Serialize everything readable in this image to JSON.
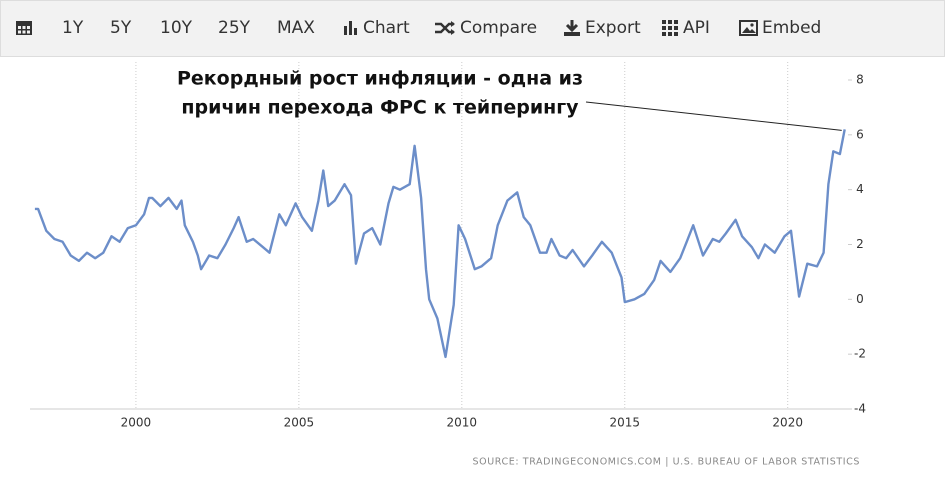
{
  "toolbar": [
    "1Y",
    "5Y",
    "10Y",
    "25Y",
    "MAX",
    "Chart",
    "Compare",
    "Export",
    "API",
    "Embed"
  ],
  "chart_data": {
    "type": "line",
    "annotation": [
      "Рекордный рост инфляции - одна из",
      "причин перехода ФРС к тейперингу"
    ],
    "source": "SOURCE: TRADINGECONOMICS.COM | U.S. BUREAU OF LABOR STATISTICS",
    "xlim": [
      1996.75,
      2021.85
    ],
    "xticks": [
      2000,
      2005,
      2010,
      2015,
      2020
    ],
    "ylim": [
      -4,
      8
    ],
    "yticks": [
      -4,
      -2,
      0,
      2,
      4,
      6,
      8
    ],
    "grid": true,
    "series": [
      {
        "color": "#6c8ec9",
        "x": [
          1996.9,
          1997.0,
          1997.25,
          1997.5,
          1997.75,
          1998.0,
          1998.25,
          1998.5,
          1998.75,
          1999.0,
          1999.25,
          1999.5,
          1999.75,
          2000.0,
          2000.25,
          2000.4,
          2000.5,
          2000.75,
          2001.0,
          2001.25,
          2001.4,
          2001.5,
          2001.75,
          2001.9,
          2002.0,
          2002.25,
          2002.5,
          2002.75,
          2003.0,
          2003.15,
          2003.4,
          2003.6,
          2003.9,
          2004.1,
          2004.4,
          2004.6,
          2004.9,
          2005.1,
          2005.4,
          2005.6,
          2005.75,
          2005.9,
          2006.1,
          2006.4,
          2006.6,
          2006.75,
          2007.0,
          2007.25,
          2007.5,
          2007.75,
          2007.9,
          2008.1,
          2008.4,
          2008.55,
          2008.75,
          2008.9,
          2009.0,
          2009.25,
          2009.5,
          2009.75,
          2009.9,
          2010.1,
          2010.4,
          2010.6,
          2010.9,
          2011.1,
          2011.4,
          2011.7,
          2011.9,
          2012.1,
          2012.4,
          2012.6,
          2012.75,
          2013.0,
          2013.2,
          2013.4,
          2013.75,
          2014.0,
          2014.3,
          2014.6,
          2014.9,
          2015.0,
          2015.3,
          2015.6,
          2015.9,
          2016.1,
          2016.4,
          2016.7,
          2016.9,
          2017.1,
          2017.4,
          2017.7,
          2017.9,
          2018.1,
          2018.4,
          2018.6,
          2018.9,
          2019.1,
          2019.3,
          2019.6,
          2019.9,
          2020.1,
          2020.35,
          2020.6,
          2020.9,
          2021.1,
          2021.25,
          2021.4,
          2021.6,
          2021.75
        ],
        "values": [
          3.3,
          3.3,
          2.5,
          2.2,
          2.1,
          1.6,
          1.4,
          1.7,
          1.5,
          1.7,
          2.3,
          2.1,
          2.6,
          2.7,
          3.1,
          3.7,
          3.7,
          3.4,
          3.7,
          3.3,
          3.6,
          2.7,
          2.1,
          1.6,
          1.1,
          1.6,
          1.5,
          2.0,
          2.6,
          3.0,
          2.1,
          2.2,
          1.9,
          1.7,
          3.1,
          2.7,
          3.5,
          3.0,
          2.5,
          3.6,
          4.7,
          3.4,
          3.6,
          4.2,
          3.8,
          1.3,
          2.4,
          2.6,
          2.0,
          3.5,
          4.1,
          4.0,
          4.2,
          5.6,
          3.7,
          1.1,
          0.0,
          -0.7,
          -2.1,
          -0.2,
          2.7,
          2.2,
          1.1,
          1.2,
          1.5,
          2.7,
          3.6,
          3.9,
          3.0,
          2.7,
          1.7,
          1.7,
          2.2,
          1.6,
          1.5,
          1.8,
          1.2,
          1.6,
          2.1,
          1.7,
          0.8,
          -0.1,
          0.0,
          0.2,
          0.7,
          1.4,
          1.0,
          1.5,
          2.1,
          2.7,
          1.6,
          2.2,
          2.1,
          2.4,
          2.9,
          2.3,
          1.9,
          1.5,
          2.0,
          1.7,
          2.3,
          2.5,
          0.1,
          1.3,
          1.2,
          1.7,
          4.2,
          5.4,
          5.3,
          6.2
        ]
      }
    ]
  }
}
